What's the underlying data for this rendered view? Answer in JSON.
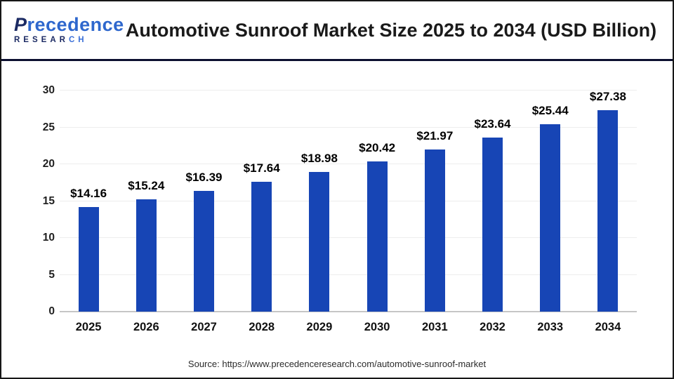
{
  "header": {
    "logo": {
      "brand": "Precedence",
      "sub_dark": "RESEAR",
      "sub_blue": "CH"
    },
    "title": "Automotive Sunroof Market Size 2025 to 2034 (USD Billion)"
  },
  "chart_data": {
    "type": "bar",
    "title": "Automotive Sunroof Market Size 2025 to 2034 (USD Billion)",
    "unit": "USD Billion",
    "categories": [
      "2025",
      "2026",
      "2027",
      "2028",
      "2029",
      "2030",
      "2031",
      "2032",
      "2033",
      "2034"
    ],
    "values": [
      14.16,
      15.24,
      16.39,
      17.64,
      18.98,
      20.42,
      21.97,
      23.64,
      25.44,
      27.38
    ],
    "value_labels": [
      "$14.16",
      "$15.24",
      "$16.39",
      "$17.64",
      "$18.98",
      "$20.42",
      "$21.97",
      "$23.64",
      "$25.44",
      "$27.38"
    ],
    "ylim": [
      0,
      30
    ],
    "yticks": [
      0,
      5,
      10,
      15,
      20,
      25,
      30
    ],
    "grid": true,
    "legend_position": "none",
    "bar_color": "#1745b5"
  },
  "footer": {
    "source": "Source: https://www.precedenceresearch.com/automotive-sunroof-market"
  }
}
